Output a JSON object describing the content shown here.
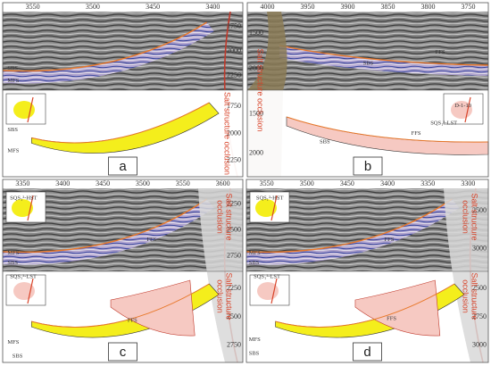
{
  "panels": [
    {
      "letter": "a",
      "x_ticks": [
        "3550",
        "3500",
        "3450",
        "3400"
      ],
      "upper_depth": [
        "1750",
        "2000",
        "2250"
      ],
      "lower_depth": [
        "1750",
        "2000",
        "2250"
      ],
      "upper_labels": [
        "SBS",
        "MFS"
      ],
      "lower_labels": [
        "SBS",
        "MFS"
      ],
      "occlusion": [
        "Salt structure occlusion"
      ]
    },
    {
      "letter": "b",
      "x_ticks": [
        "4000",
        "3950",
        "3900",
        "3850",
        "3800",
        "3750"
      ],
      "upper_depth": [
        "1500",
        "2000"
      ],
      "lower_depth": [
        "1500",
        "2000"
      ],
      "upper_labels": [
        "SBS",
        "FFS"
      ],
      "lower_labels": [
        "D-1-10",
        "SQS₁²-LST",
        "SBS",
        "FFS"
      ],
      "occlusion": [
        "Salt structure occlusion"
      ]
    },
    {
      "letter": "c",
      "x_ticks": [
        "3350",
        "3400",
        "3450",
        "3500",
        "3550",
        "3600"
      ],
      "upper_depth": [
        "2250",
        "2500",
        "2750"
      ],
      "lower_depth": [
        "2250",
        "2500",
        "2750"
      ],
      "upper_labels": [
        "SQS₁²-HST",
        "MFS",
        "SBS",
        "FFS"
      ],
      "lower_labels": [
        "SQS₁²-LST",
        "MFS",
        "SBS",
        "FFS"
      ],
      "occlusion": [
        "Salt structure",
        "occlusion"
      ]
    },
    {
      "letter": "d",
      "x_ticks": [
        "3550",
        "3500",
        "3450",
        "3400",
        "3350",
        "3300"
      ],
      "upper_depth": [
        "2500",
        "3000"
      ],
      "lower_depth": [
        "2500",
        "2750",
        "3000"
      ],
      "upper_labels": [
        "SQS₁²-HST",
        "MFS",
        "SBS",
        "FFS"
      ],
      "lower_labels": [
        "SQS₁²-LST",
        "MFS",
        "SBS",
        "FFS"
      ],
      "occlusion": [
        "Salt structure",
        "occlusion"
      ]
    }
  ]
}
